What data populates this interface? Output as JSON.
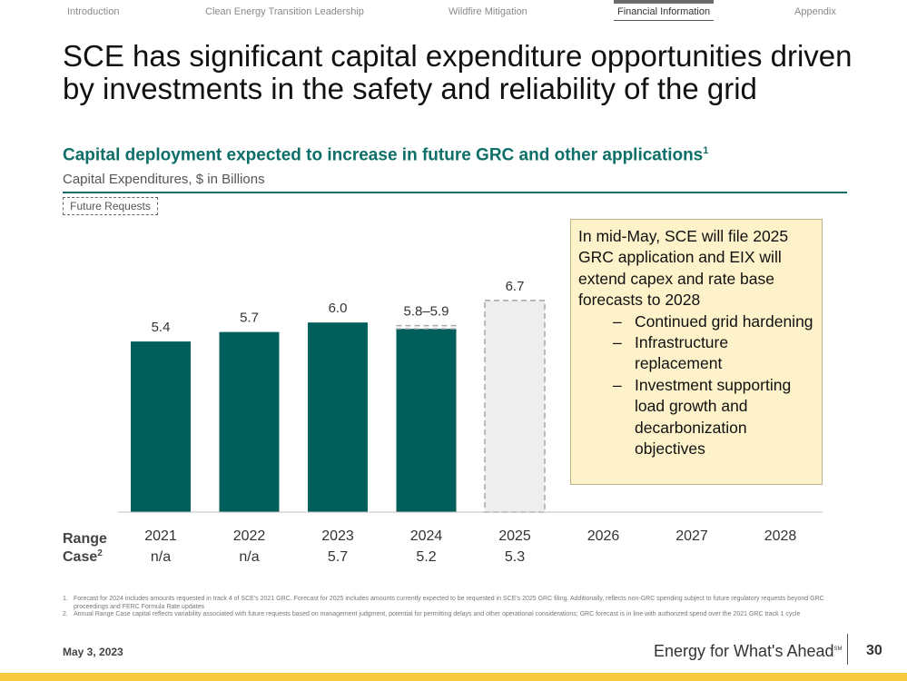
{
  "nav": {
    "items": [
      "Introduction",
      "Clean Energy Transition Leadership",
      "Wildfire Mitigation",
      "Financial Information",
      "Appendix"
    ],
    "active_index": 3
  },
  "title": "SCE has significant capital expenditure opportunities driven by investments in the safety and reliability of the grid",
  "subtitle": "Capital deployment expected to increase in future GRC and other applications",
  "subtitle_footnote": "1",
  "units": "Capital Expenditures, $ in Billions",
  "legend": "Future Requests",
  "chart_data": {
    "type": "bar",
    "categories": [
      "2021",
      "2022",
      "2023",
      "2024",
      "2025",
      "2026",
      "2027",
      "2028"
    ],
    "values": [
      5.4,
      5.7,
      6.0,
      5.8,
      6.7,
      null,
      null,
      null
    ],
    "range_high": [
      null,
      null,
      null,
      5.9,
      null,
      null,
      null,
      null
    ],
    "labels": [
      "5.4",
      "5.7",
      "6.0",
      "5.8–5.9",
      "6.7",
      "",
      "",
      ""
    ],
    "future_request": [
      false,
      false,
      false,
      false,
      true,
      false,
      false,
      false
    ],
    "range_case_label": "Range Case",
    "range_case_footnote": "2",
    "range_case": [
      "n/a",
      "n/a",
      "5.7",
      "5.2",
      "5.3",
      "",
      "",
      ""
    ],
    "colors": {
      "bar": "#005f5b",
      "future_fill": "#eeeeee",
      "future_border": "#a6a6a6",
      "axis": "#bfbfbf"
    }
  },
  "callout": {
    "intro": "In mid-May, SCE will file 2025 GRC application and EIX will extend capex and rate base forecasts to 2028",
    "bullets": [
      "Continued grid hardening",
      "Infrastructure replacement",
      "Investment supporting load growth and decarbonization objectives"
    ]
  },
  "footnotes": [
    {
      "num": "1.",
      "text": "Forecast for 2024 includes amounts requested in track 4 of SCE's 2021 GRC. Forecast for 2025 includes amounts currently expected to be requested in SCE's 2025 GRC filing. Additionally, reflects non-GRC spending subject to future regulatory requests beyond GRC proceedings and FERC Formula Rate updates"
    },
    {
      "num": "2.",
      "text": "Annual Range Case capital reflects variability associated with future requests based on management judgment, potential for permitting delays and other operational considerations; GRC forecast is in line with authorized spend over the 2021 GRC track 1 cycle"
    }
  ],
  "footer": {
    "date": "May 3, 2023",
    "tagline": "Energy for What's Ahead",
    "tagline_mark": "SM",
    "page_number": "30"
  }
}
